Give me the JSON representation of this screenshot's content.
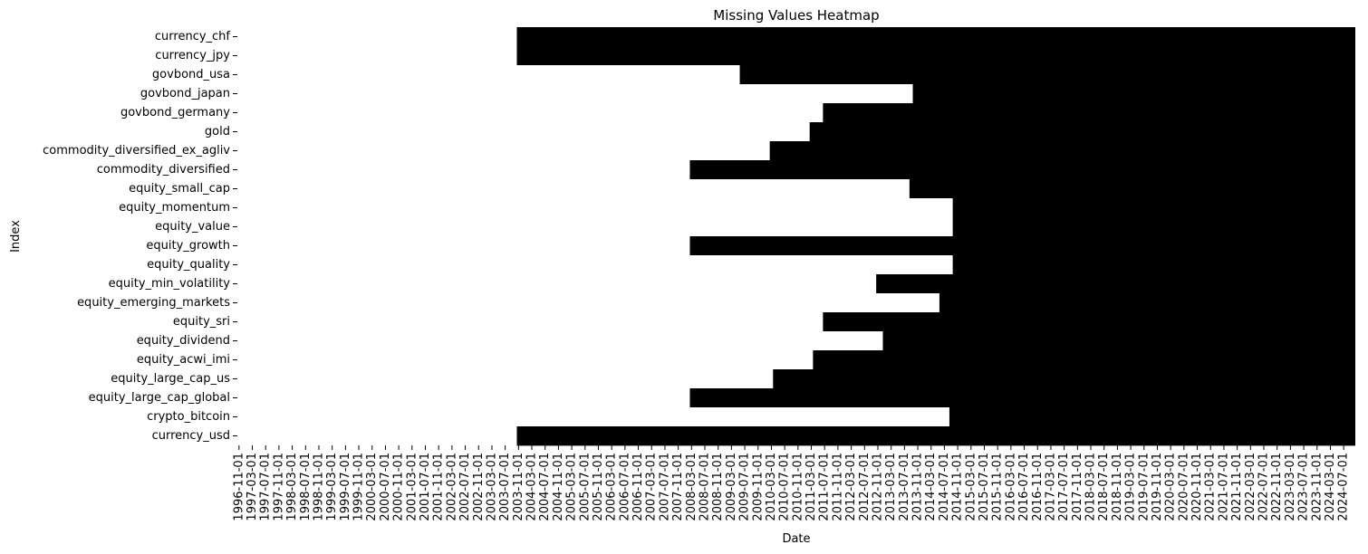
{
  "chart_data": {
    "type": "heatmap",
    "title": "Missing Values Heatmap",
    "xlabel": "Date",
    "ylabel": "Index",
    "colors": {
      "present": "#000000",
      "missing": "#ffffff"
    },
    "x_range": [
      "1996-11-01",
      "2024-10-01"
    ],
    "x_ticks": [
      "1996-11-01",
      "1997-03-01",
      "1997-07-01",
      "1997-11-01",
      "1998-03-01",
      "1998-07-01",
      "1998-11-01",
      "1999-03-01",
      "1999-07-01",
      "1999-11-01",
      "2000-03-01",
      "2000-07-01",
      "2000-11-01",
      "2001-03-01",
      "2001-07-01",
      "2001-11-01",
      "2002-03-01",
      "2002-07-01",
      "2002-11-01",
      "2003-03-01",
      "2003-07-01",
      "2003-11-01",
      "2004-03-01",
      "2004-07-01",
      "2004-11-01",
      "2005-03-01",
      "2005-07-01",
      "2005-11-01",
      "2006-03-01",
      "2006-07-01",
      "2006-11-01",
      "2007-03-01",
      "2007-07-01",
      "2007-11-01",
      "2008-03-01",
      "2008-07-01",
      "2008-11-01",
      "2009-03-01",
      "2009-07-01",
      "2009-11-01",
      "2010-03-01",
      "2010-07-01",
      "2010-11-01",
      "2011-03-01",
      "2011-07-01",
      "2011-11-01",
      "2012-03-01",
      "2012-07-01",
      "2012-11-01",
      "2013-03-01",
      "2013-07-01",
      "2013-11-01",
      "2014-03-01",
      "2014-07-01",
      "2014-11-01",
      "2015-03-01",
      "2015-07-01",
      "2015-11-01",
      "2016-03-01",
      "2016-07-01",
      "2016-11-01",
      "2017-03-01",
      "2017-07-01",
      "2017-11-01",
      "2018-03-01",
      "2018-07-01",
      "2018-11-01",
      "2019-03-01",
      "2019-07-01",
      "2019-11-01",
      "2020-03-01",
      "2020-07-01",
      "2020-11-01",
      "2021-03-01",
      "2021-07-01",
      "2021-11-01",
      "2022-03-01",
      "2022-07-01",
      "2022-11-01",
      "2023-03-01",
      "2023-07-01",
      "2023-11-01",
      "2024-03-01",
      "2024-07-01"
    ],
    "rows": [
      {
        "label": "currency_chf",
        "start": "2003-11-01"
      },
      {
        "label": "currency_jpy",
        "start": "2003-11-01"
      },
      {
        "label": "govbond_usa",
        "start": "2009-06-01"
      },
      {
        "label": "govbond_japan",
        "start": "2013-10-01"
      },
      {
        "label": "govbond_germany",
        "start": "2011-07-01"
      },
      {
        "label": "gold",
        "start": "2011-03-01"
      },
      {
        "label": "commodity_diversified_ex_agliv",
        "start": "2010-03-01"
      },
      {
        "label": "commodity_diversified",
        "start": "2008-03-01"
      },
      {
        "label": "equity_small_cap",
        "start": "2013-09-01"
      },
      {
        "label": "equity_momentum",
        "start": "2014-10-01"
      },
      {
        "label": "equity_value",
        "start": "2014-10-01"
      },
      {
        "label": "equity_growth",
        "start": "2008-03-01"
      },
      {
        "label": "equity_quality",
        "start": "2014-10-01"
      },
      {
        "label": "equity_min_volatility",
        "start": "2012-11-01"
      },
      {
        "label": "equity_emerging_markets",
        "start": "2014-06-01"
      },
      {
        "label": "equity_sri",
        "start": "2011-07-01"
      },
      {
        "label": "equity_dividend",
        "start": "2013-01-01"
      },
      {
        "label": "equity_acwi_imi",
        "start": "2011-04-01"
      },
      {
        "label": "equity_large_cap_us",
        "start": "2010-04-01"
      },
      {
        "label": "equity_large_cap_global",
        "start": "2008-03-01"
      },
      {
        "label": "crypto_bitcoin",
        "start": "2014-09-01"
      },
      {
        "label": "currency_usd",
        "start": "2003-11-01"
      }
    ]
  }
}
